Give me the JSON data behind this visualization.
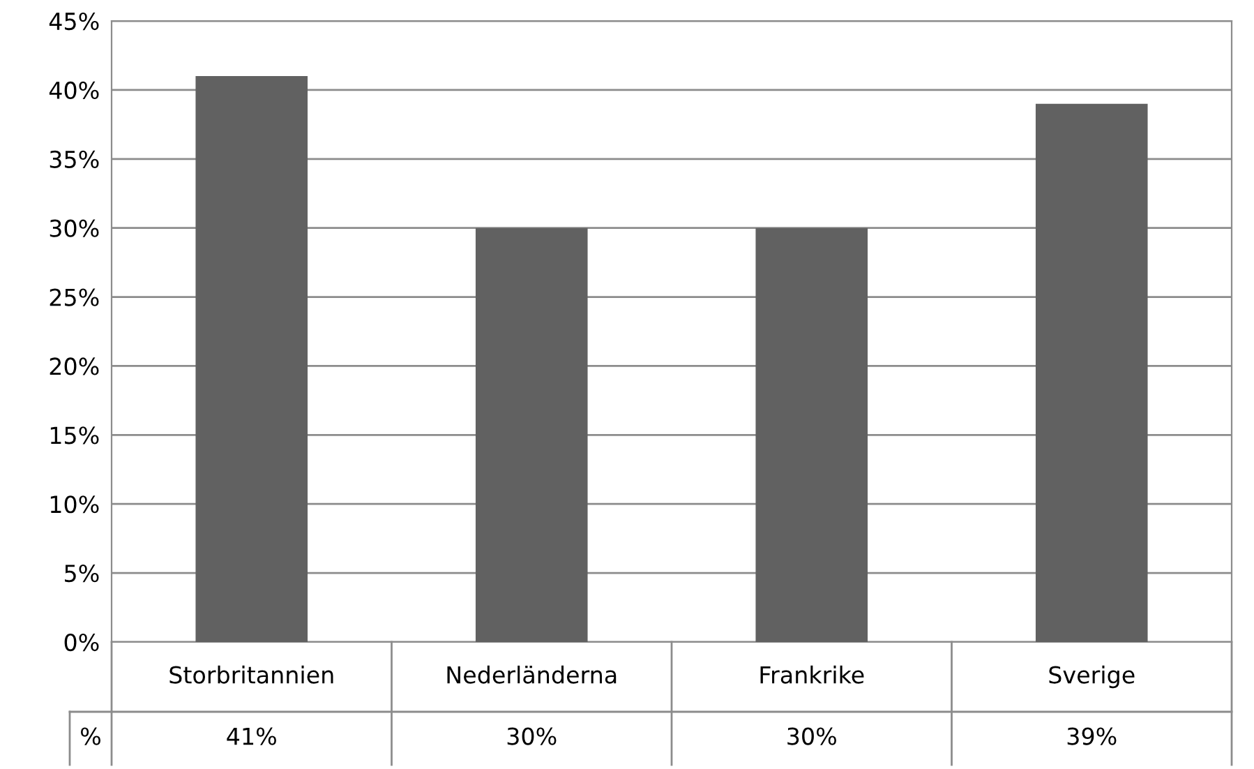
{
  "chart_data": {
    "type": "bar",
    "categories": [
      "Storbritannien",
      "Nederländerna",
      "Frankrike",
      "Sverige"
    ],
    "series": [
      {
        "name": "%",
        "color": "#616161",
        "values": [
          41,
          30,
          30,
          39
        ],
        "value_labels": [
          "41%",
          "30%",
          "30%",
          "39%"
        ]
      }
    ],
    "ylim": [
      0,
      45
    ],
    "yticks": [
      {
        "value": 0,
        "label": "0%"
      },
      {
        "value": 5,
        "label": "5%"
      },
      {
        "value": 10,
        "label": "10%"
      },
      {
        "value": 15,
        "label": "15%"
      },
      {
        "value": 20,
        "label": "20%"
      },
      {
        "value": 25,
        "label": "25%"
      },
      {
        "value": 30,
        "label": "30%"
      },
      {
        "value": 35,
        "label": "35%"
      },
      {
        "value": 40,
        "label": "40%"
      },
      {
        "value": 45,
        "label": "45%"
      }
    ],
    "grid": "y"
  }
}
